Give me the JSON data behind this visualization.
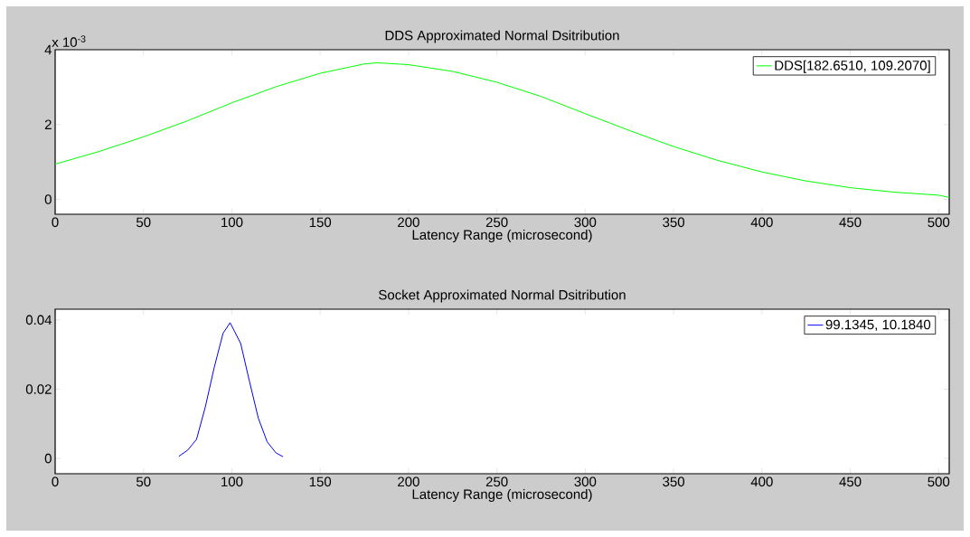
{
  "chart_data": [
    {
      "type": "line",
      "title": "DDS Approximated Normal Dsitribution",
      "xlabel": "Latency Range (microsecond)",
      "annotations": [
        "x 10$^{-3}$"
      ],
      "legend": "top right",
      "xlim": [
        0,
        506
      ],
      "xticks": [
        0,
        50,
        100,
        150,
        200,
        250,
        300,
        350,
        400,
        450,
        500
      ],
      "ylim": [
        -0.4,
        4
      ],
      "yticks": [
        0,
        2,
        4
      ],
      "series": [
        {
          "name": "DDS[182.6510, 109.2070]",
          "color": "#00ff00",
          "x": [
            0,
            25,
            50,
            75,
            100,
            125,
            150,
            175,
            182,
            200,
            225,
            250,
            275,
            300,
            325,
            350,
            375,
            400,
            425,
            450,
            475,
            500,
            506
          ],
          "values": [
            0.94,
            1.28,
            1.67,
            2.1,
            2.58,
            3.01,
            3.37,
            3.62,
            3.65,
            3.6,
            3.42,
            3.13,
            2.75,
            2.29,
            1.84,
            1.41,
            1.04,
            0.73,
            0.49,
            0.31,
            0.19,
            0.11,
            0.05
          ]
        }
      ]
    },
    {
      "type": "line",
      "title": "Socket Approximated Normal Dsitribution",
      "xlabel": "Latency Range (microsecond)",
      "legend": "top right",
      "xlim": [
        0,
        506
      ],
      "xticks": [
        0,
        50,
        100,
        150,
        200,
        250,
        300,
        350,
        400,
        450,
        500
      ],
      "ylim": [
        -0.0044,
        0.0431
      ],
      "yticks": [
        0,
        0.02,
        0.04
      ],
      "series": [
        {
          "name": "99.1345, 10.1840",
          "color": "#0000ff",
          "x": [
            70,
            75,
            80,
            85,
            90,
            95,
            99,
            105,
            110,
            115,
            120,
            125,
            129
          ],
          "values": [
            0.0006,
            0.0024,
            0.0055,
            0.0149,
            0.0262,
            0.0361,
            0.0392,
            0.0332,
            0.0222,
            0.0116,
            0.0048,
            0.0016,
            0.0005
          ]
        }
      ]
    }
  ]
}
